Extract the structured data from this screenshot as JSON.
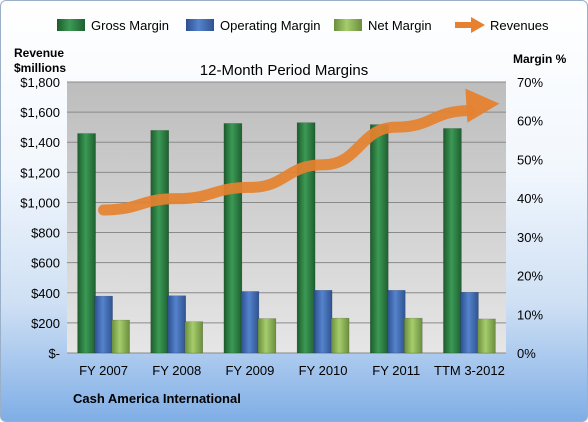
{
  "chart_data": {
    "type": "bar",
    "title": "12-Month Period Margins",
    "company": "Cash America International",
    "left_axis_label": [
      "Revenue",
      "$millions"
    ],
    "right_axis_label": "Margin %",
    "categories": [
      "FY 2007",
      "FY 2008",
      "FY 2009",
      "FY 2010",
      "FY 2011",
      "TTM 3-2012"
    ],
    "left_ticks": [
      "$-",
      "$200",
      "$400",
      "$600",
      "$800",
      "$1,000",
      "$1,200",
      "$1,400",
      "$1,600",
      "$1,800"
    ],
    "right_ticks": [
      "0%",
      "10%",
      "20%",
      "30%",
      "40%",
      "50%",
      "60%",
      "70%"
    ],
    "ylim_left": [
      0,
      1800
    ],
    "ylim_right": [
      0,
      70
    ],
    "series": [
      {
        "name": "Gross Margin",
        "values": [
          56.7,
          57.5,
          59.3,
          59.5,
          59.0,
          58.0
        ],
        "color": "#2e7d43"
      },
      {
        "name": "Operating Margin",
        "values": [
          14.7,
          14.8,
          15.9,
          16.2,
          16.2,
          15.7
        ],
        "color": "#3f6db5"
      },
      {
        "name": "Net Margin",
        "values": [
          8.5,
          8.1,
          8.9,
          9.0,
          9.0,
          8.8
        ],
        "color": "#8db657"
      },
      {
        "name": "Revenues",
        "values": [
          950,
          1025,
          1100,
          1250,
          1500,
          1610
        ],
        "color": "#e5812f"
      }
    ],
    "legend_position": "top",
    "grid": true
  }
}
